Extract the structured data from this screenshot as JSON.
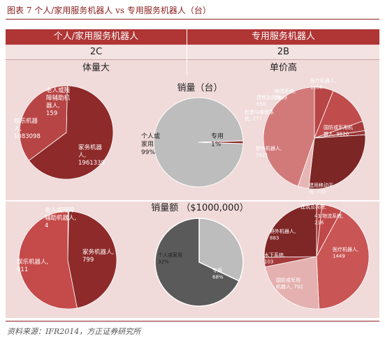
{
  "figure_title": "图表 7   个人/家用服务机器人 vs 专用服务机器人（台）",
  "source": "资料来源：IFR2014，方正证券研究所",
  "columns": {
    "left": {
      "header": "个人/家用服务机器人",
      "code": "2C",
      "feature": "体量大"
    },
    "right": {
      "header": "专用服务机器人",
      "code": "2B",
      "feature": "单价高"
    }
  },
  "chart_data": [
    {
      "type": "pie",
      "id": "personal-volume",
      "title": "",
      "slices": [
        {
          "label": "老人或残障辅助机器人",
          "value_label": "159",
          "value": 159
        },
        {
          "label": "家务机器人",
          "value_label": "1961339",
          "value": 1961339
        },
        {
          "label": "娱乐机器人",
          "value_label": "1083098",
          "value": 1083098
        }
      ]
    },
    {
      "type": "pie",
      "id": "volume-share",
      "title": "销量（台）",
      "slices": [
        {
          "label": "个人或家用",
          "value_label": "99%",
          "value": 99
        },
        {
          "label": "专用",
          "value_label": "1%",
          "value": 1
        }
      ]
    },
    {
      "type": "pie",
      "id": "professional-volume",
      "title": "",
      "slices": [
        {
          "label": "医疗机器人",
          "value_label": "1286",
          "value": 1286
        },
        {
          "label": "物流系统",
          "value_label": "2889",
          "value": 2889
        },
        {
          "label": "建筑及拆除",
          "value_label": "650",
          "value": 650
        },
        {
          "label": "检查与维修系统",
          "value_label": "277",
          "value": 277
        },
        {
          "label": "野外机器人",
          "value_label": "5921",
          "value": 5921
        },
        {
          "label": "建用移动平台",
          "value_label": "733",
          "value": 733
        },
        {
          "label": "国防或军用机器人",
          "value_label": "9520",
          "value": 9520
        }
      ]
    },
    {
      "type": "pie",
      "id": "personal-sales",
      "title": "",
      "slices": [
        {
          "label": "老人或残障辅助机器人",
          "value_label": "4",
          "value": 4
        },
        {
          "label": "家务机器人",
          "value_label": "799",
          "value": 799
        },
        {
          "label": "娱乐机器人",
          "value_label": "911",
          "value": 911
        }
      ]
    },
    {
      "type": "pie",
      "id": "sales-share",
      "title": "销量额 （$1000,000）",
      "slices": [
        {
          "label": "个人或家用",
          "value_label": "32%",
          "value": 32
        },
        {
          "label": "专用",
          "value_label": "68%",
          "value": 68
        }
      ]
    },
    {
      "type": "pie",
      "id": "professional-sales",
      "title": "",
      "slices": [
        {
          "label": "建筑及拆除",
          "value_label": "",
          "value": 60
        },
        {
          "label": "物流系统",
          "value_label": "216",
          "value": 216
        },
        {
          "label": "医疗机器人",
          "value_label": "1449",
          "value": 1449
        },
        {
          "label": "国防或军用机器人",
          "value_label": "792",
          "value": 792
        },
        {
          "label": "水下系统",
          "value_label": "103",
          "value": 103
        },
        {
          "label": "野外机器人",
          "value_label": "883",
          "value": 883
        }
      ]
    }
  ],
  "colors": {
    "header_red": "#b03535",
    "pie_dark": "#8e2a2a",
    "pie_mid": "#b84545",
    "pie_light": "#c96666",
    "pie_pink": "#e3a0a0",
    "grey_light": "#bdbdbd",
    "grey_dark": "#5a5a5a"
  }
}
